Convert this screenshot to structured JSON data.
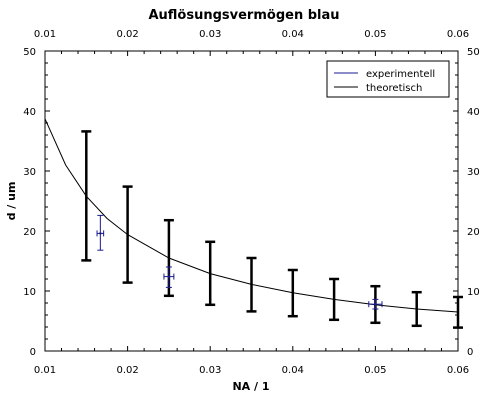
{
  "chart_data": {
    "type": "line",
    "title": "Auflösungsvermögen blau",
    "xlabel": "NA / 1",
    "ylabel": "d / um",
    "xlim": [
      0.01,
      0.06
    ],
    "ylim": [
      0,
      50
    ],
    "x_ticks": [
      0.01,
      0.02,
      0.03,
      0.04,
      0.05,
      0.06
    ],
    "x_tick_labels": [
      "0.01",
      "0.02",
      "0.03",
      "0.04",
      "0.05",
      "0.06"
    ],
    "y_ticks": [
      0,
      10,
      20,
      30,
      40,
      50
    ],
    "y_tick_labels": [
      "0",
      "10",
      "20",
      "30",
      "40",
      "50"
    ],
    "grid": false,
    "legend_position": "top-right",
    "series": [
      {
        "name": "experimentell",
        "color": "#1a1a8c",
        "points": [
          {
            "x": 0.0167,
            "y": 19.6,
            "y_low": 16.8,
            "y_high": 22.6,
            "x_err": 0.0004
          },
          {
            "x": 0.025,
            "y": 12.4,
            "y_low": 10.6,
            "y_high": 14.0,
            "x_err": 0.0006
          },
          {
            "x": 0.05,
            "y": 7.8,
            "y_low": 7.0,
            "y_high": 8.6,
            "x_err": 0.0008
          }
        ]
      },
      {
        "name": "theoretisch",
        "color": "#000000",
        "x": [
          0.01,
          0.0125,
          0.015,
          0.0175,
          0.02,
          0.025,
          0.03,
          0.035,
          0.04,
          0.045,
          0.05,
          0.055,
          0.06
        ],
        "values": [
          38.7,
          31.0,
          25.8,
          22.1,
          19.4,
          15.5,
          12.9,
          11.1,
          9.7,
          8.6,
          7.7,
          7.0,
          6.5
        ],
        "error_bars": [
          {
            "x": 0.015,
            "low": 15.1,
            "high": 36.6
          },
          {
            "x": 0.02,
            "low": 11.4,
            "high": 27.4
          },
          {
            "x": 0.025,
            "low": 9.2,
            "high": 21.8
          },
          {
            "x": 0.03,
            "low": 7.7,
            "high": 18.2
          },
          {
            "x": 0.035,
            "low": 6.6,
            "high": 15.5
          },
          {
            "x": 0.04,
            "low": 5.8,
            "high": 13.5
          },
          {
            "x": 0.045,
            "low": 5.2,
            "high": 12.0
          },
          {
            "x": 0.05,
            "low": 4.7,
            "high": 10.8
          },
          {
            "x": 0.055,
            "low": 4.2,
            "high": 9.8
          },
          {
            "x": 0.06,
            "low": 3.9,
            "high": 9.0
          }
        ]
      }
    ]
  }
}
